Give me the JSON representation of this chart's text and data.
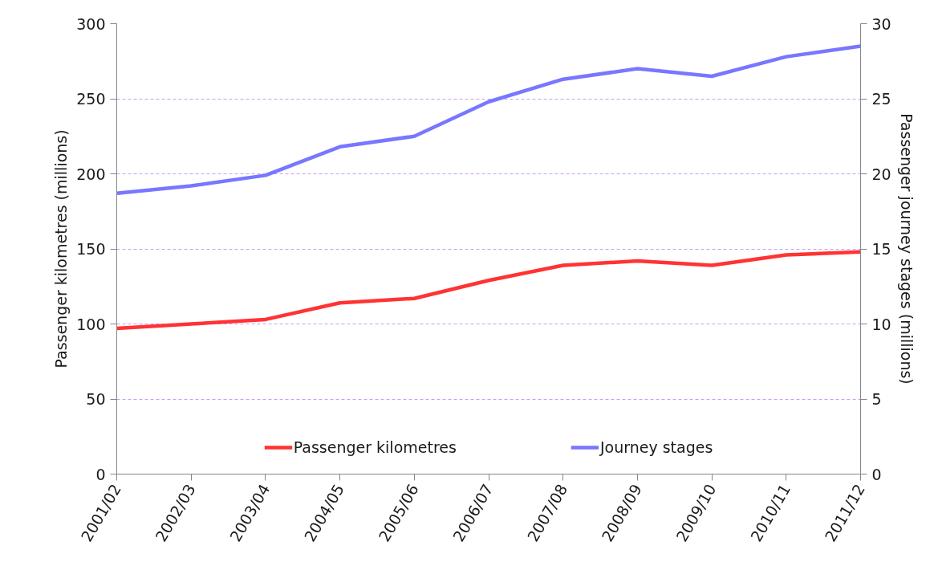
{
  "chart_data": {
    "type": "line",
    "ylabel": "Passenger kilometres (millions)",
    "y2label": "Passenger journey stages (millions)",
    "categories": [
      "2001/02",
      "2002/03",
      "2003/04",
      "2004/05",
      "2005/06",
      "2006/07",
      "2007/08",
      "2008/09",
      "2009/10",
      "2010/11",
      "2011/12"
    ],
    "series": [
      {
        "name": "Passenger kilometres",
        "color": "#ff3333",
        "values": [
          97,
          100,
          103,
          114,
          117,
          129,
          139,
          142,
          139,
          146,
          148
        ]
      },
      {
        "name": "Journey stages",
        "color": "#7777ff",
        "axis": "y2",
        "values": [
          18.7,
          19.2,
          19.9,
          21.8,
          22.5,
          24.8,
          26.3,
          27.0,
          26.5,
          27.8,
          28.5
        ]
      }
    ],
    "ylim": [
      0,
      300
    ],
    "yticks": [
      0,
      50,
      100,
      150,
      200,
      250,
      300
    ],
    "y2lim": [
      0,
      30
    ],
    "y2ticks": [
      0,
      5,
      10,
      15,
      20,
      25,
      30
    ],
    "grid": "y",
    "legend": "bottom",
    "line_style": "solid"
  }
}
